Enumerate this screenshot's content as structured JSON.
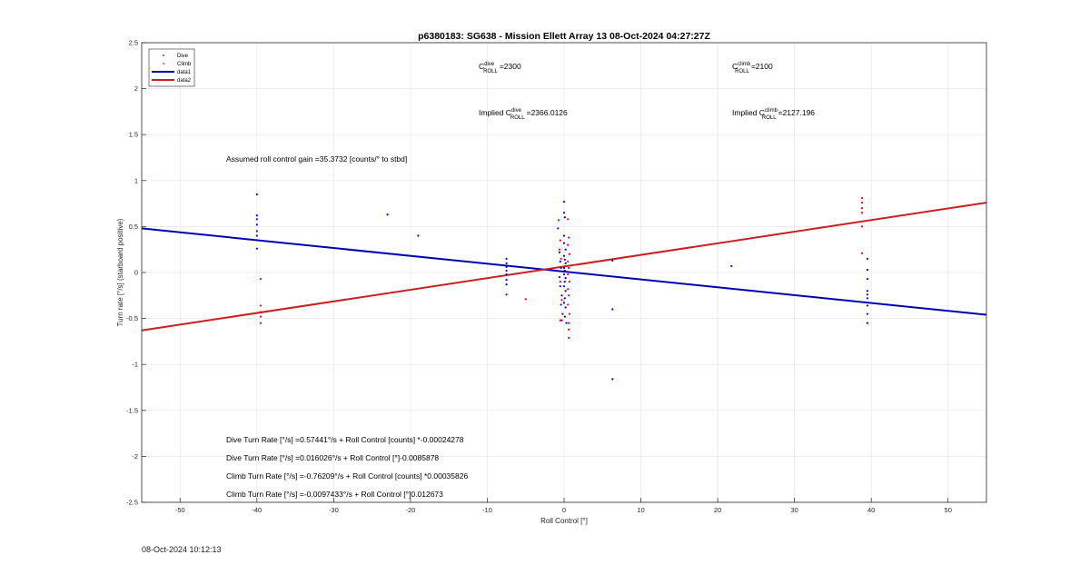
{
  "chart_data": {
    "type": "scatter",
    "title": "p6380183: SG638 - Mission Ellett Array 13 08-Oct-2024 04:27:27Z",
    "xlabel": "Roll Control [°]",
    "ylabel": "Turn rate [°/s] (starboard positive)",
    "xlim": [
      -55,
      55
    ],
    "ylim": [
      -2.5,
      2.5
    ],
    "xticks": [
      -50,
      -40,
      -30,
      -20,
      -10,
      0,
      10,
      20,
      30,
      40,
      50
    ],
    "yticks": [
      -2.5,
      -2,
      -1.5,
      -1,
      -0.5,
      0,
      0.5,
      1,
      1.5,
      2,
      2.5
    ],
    "grid": true,
    "legend_position": "top-left",
    "legend": [
      "Dive",
      "Climb",
      "data1",
      "data2"
    ],
    "colors": {
      "dive": "#0000ff",
      "climb": "#ff0000",
      "fit_dive": "#0000b3",
      "fit_climb": "#cc1f1f"
    },
    "series": [
      {
        "name": "Dive",
        "kind": "points",
        "points": [
          [
            -40,
            0.85
          ],
          [
            -40,
            0.62
          ],
          [
            -40,
            0.58
          ],
          [
            -40,
            0.52
          ],
          [
            -40,
            0.45
          ],
          [
            -40,
            0.4
          ],
          [
            -40,
            0.26
          ],
          [
            -23,
            0.63
          ],
          [
            -19,
            0.4
          ],
          [
            -7.5,
            0.15
          ],
          [
            -7.5,
            0.1
          ],
          [
            -7.5,
            0.06
          ],
          [
            -7.5,
            0.02
          ],
          [
            -7.5,
            -0.02
          ],
          [
            -7.5,
            -0.08
          ],
          [
            -7.5,
            -0.13
          ],
          [
            -7.5,
            -0.24
          ],
          [
            -0.8,
            0.48
          ],
          [
            -0.6,
            0.22
          ],
          [
            -0.5,
            0.12
          ],
          [
            -0.4,
            0.05
          ],
          [
            -0.6,
            -0.05
          ],
          [
            -0.5,
            -0.15
          ],
          [
            -0.3,
            -0.25
          ],
          [
            -0.4,
            -0.35
          ],
          [
            -0.2,
            -0.45
          ],
          [
            -0.3,
            -0.52
          ],
          [
            0,
            0.77
          ],
          [
            0,
            0.65
          ],
          [
            0.1,
            0.6
          ],
          [
            0,
            0.4
          ],
          [
            0,
            0.32
          ],
          [
            0.2,
            0.25
          ],
          [
            0,
            0.18
          ],
          [
            0.1,
            0.14
          ],
          [
            0.2,
            0.1
          ],
          [
            0,
            0.05
          ],
          [
            0.1,
            0.02
          ],
          [
            0,
            -0.02
          ],
          [
            0.2,
            -0.06
          ],
          [
            0.1,
            -0.1
          ],
          [
            0,
            -0.15
          ],
          [
            0.2,
            -0.2
          ],
          [
            0.1,
            -0.28
          ],
          [
            0,
            -0.33
          ],
          [
            0.2,
            -0.38
          ],
          [
            0.1,
            -0.48
          ],
          [
            0.3,
            -0.55
          ],
          [
            6.3,
            0.13
          ],
          [
            6.3,
            -0.4
          ],
          [
            6.3,
            -1.16
          ],
          [
            21.8,
            0.07
          ],
          [
            39.5,
            0.15
          ],
          [
            39.5,
            0.03
          ],
          [
            39.5,
            -0.07
          ],
          [
            39.5,
            -0.2
          ],
          [
            39.5,
            -0.24
          ],
          [
            39.5,
            -0.28
          ],
          [
            39.5,
            -0.36
          ],
          [
            39.5,
            -0.45
          ],
          [
            39.5,
            -0.55
          ]
        ]
      },
      {
        "name": "Climb",
        "kind": "points",
        "points": [
          [
            -39.5,
            -0.07
          ],
          [
            -39.5,
            -0.36
          ],
          [
            -39.5,
            -0.43
          ],
          [
            -39.5,
            -0.48
          ],
          [
            -39.5,
            -0.55
          ],
          [
            -5,
            -0.29
          ],
          [
            -0.7,
            0.57
          ],
          [
            -0.5,
            0.35
          ],
          [
            -0.6,
            0.25
          ],
          [
            -0.4,
            0.15
          ],
          [
            -0.5,
            -0.1
          ],
          [
            -0.3,
            -0.3
          ],
          [
            -0.5,
            -0.52
          ],
          [
            0.5,
            0.58
          ],
          [
            0.6,
            0.38
          ],
          [
            0.5,
            0.3
          ],
          [
            0.7,
            0.2
          ],
          [
            0.5,
            0.12
          ],
          [
            0.6,
            0.05
          ],
          [
            0.5,
            -0.02
          ],
          [
            0.7,
            -0.1
          ],
          [
            0.5,
            -0.18
          ],
          [
            0.6,
            -0.25
          ],
          [
            0.5,
            -0.35
          ],
          [
            0.7,
            -0.45
          ],
          [
            0.6,
            -0.55
          ],
          [
            0.6,
            -0.62
          ],
          [
            0.6,
            -0.71
          ],
          [
            38.8,
            0.81
          ],
          [
            38.8,
            0.76
          ],
          [
            38.8,
            0.7
          ],
          [
            38.8,
            0.65
          ],
          [
            38.8,
            0.5
          ],
          [
            38.8,
            0.21
          ]
        ]
      },
      {
        "name": "data1",
        "kind": "line",
        "points": [
          [
            -55,
            0.48
          ],
          [
            55,
            -0.46
          ]
        ]
      },
      {
        "name": "data2",
        "kind": "line",
        "points": [
          [
            -55,
            -0.63
          ],
          [
            55,
            0.76
          ]
        ]
      }
    ],
    "annotations": {
      "c_roll_dive_label": "C",
      "c_roll_dive_sup": "dive",
      "c_roll_dive_sub": "ROLL",
      "c_roll_dive_value": "=2300",
      "c_roll_climb_label": "C",
      "c_roll_climb_sup": "climb",
      "c_roll_climb_sub": "ROLL",
      "c_roll_climb_value": "=2100",
      "implied_dive_prefix": "Implied C",
      "implied_dive_sup": "dive",
      "implied_dive_sub": "ROLL",
      "implied_dive_value": "=2366.0126",
      "implied_climb_prefix": "Implied C",
      "implied_climb_sup": "climb",
      "implied_climb_sub": "ROLL",
      "implied_climb_value": "=2127.196",
      "gain_text": "Assumed roll control gain =35.3732 [counts/° to stbd]",
      "eq1": "Dive Turn Rate [°/s] =0.57441°/s + Roll Control [counts] *-0.00024278",
      "eq2": "Dive Turn Rate [°/s] =0.016026°/s + Roll Control [°]-0.0085878",
      "eq3": "Climb Turn Rate [°/s] =-0.76209°/s + Roll Control [counts] *0.00035826",
      "eq4": "Climb Turn Rate [°/s] =-0.0097433°/s + Roll Control [°]0.012673"
    }
  },
  "timestamp": "08-Oct-2024 10:12:13"
}
